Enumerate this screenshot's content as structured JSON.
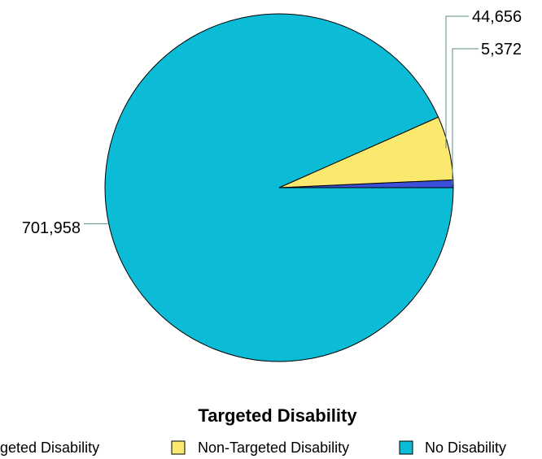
{
  "chart_data": {
    "type": "pie",
    "legend_title": "Targeted Disability",
    "legend_placement": "bottom",
    "slices": [
      {
        "name": "Targeted Disability",
        "value": 5372,
        "label": "5,372",
        "color": "#3b4fd8"
      },
      {
        "name": "Non-Targeted Disability",
        "value": 44656,
        "label": "44,656",
        "color": "#fbe86e"
      },
      {
        "name": "No Disability",
        "value": 701958,
        "label": "701,958",
        "color": "#0cbcd6"
      }
    ]
  }
}
